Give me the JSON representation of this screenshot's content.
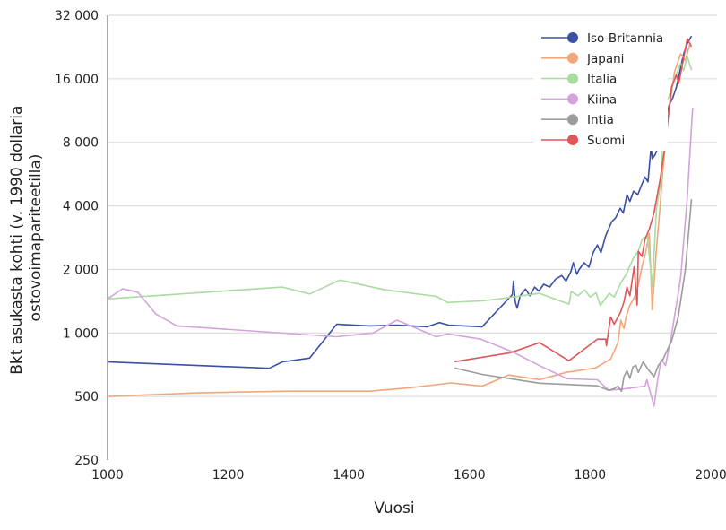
{
  "chart_data": {
    "type": "line",
    "title": "",
    "xlabel": "Vuosi",
    "ylabel_lines": [
      "Bkt asukasta kohti (v. 1990 dollaria",
      "ostovoimapariteetilla)"
    ],
    "xlim": [
      1000,
      2000
    ],
    "ylim": [
      250,
      32000
    ],
    "yscale": "log2",
    "xticks": [
      1000,
      1200,
      1400,
      1600,
      1800,
      2000
    ],
    "xtick_labels": [
      "1000",
      "1200",
      "1400",
      "1600",
      "1800",
      "2000"
    ],
    "yticks": [
      250,
      500,
      1000,
      2000,
      4000,
      8000,
      16000,
      32000
    ],
    "ytick_labels": [
      "250",
      "500",
      "1 000",
      "2 000",
      "4 000",
      "8 000",
      "16 000",
      "32 000"
    ],
    "grid": true,
    "legend_position": "top-right",
    "series": [
      {
        "name": "Iso-Britannia",
        "color": "#3a4fa8",
        "points": [
          [
            1000,
            730
          ],
          [
            1268,
            680
          ],
          [
            1290,
            730
          ],
          [
            1335,
            760
          ],
          [
            1380,
            1100
          ],
          [
            1435,
            1080
          ],
          [
            1480,
            1090
          ],
          [
            1530,
            1070
          ],
          [
            1550,
            1120
          ],
          [
            1565,
            1090
          ],
          [
            1621,
            1070
          ],
          [
            1671,
            1520
          ],
          [
            1673,
            1760
          ],
          [
            1676,
            1400
          ],
          [
            1679,
            1310
          ],
          [
            1684,
            1500
          ],
          [
            1693,
            1615
          ],
          [
            1700,
            1500
          ],
          [
            1708,
            1650
          ],
          [
            1715,
            1580
          ],
          [
            1723,
            1700
          ],
          [
            1733,
            1650
          ],
          [
            1743,
            1800
          ],
          [
            1753,
            1870
          ],
          [
            1760,
            1760
          ],
          [
            1768,
            1950
          ],
          [
            1772,
            2150
          ],
          [
            1778,
            1900
          ],
          [
            1782,
            2000
          ],
          [
            1790,
            2150
          ],
          [
            1798,
            2050
          ],
          [
            1805,
            2400
          ],
          [
            1812,
            2610
          ],
          [
            1818,
            2400
          ],
          [
            1826,
            2900
          ],
          [
            1836,
            3370
          ],
          [
            1842,
            3500
          ],
          [
            1850,
            3900
          ],
          [
            1855,
            3700
          ],
          [
            1861,
            4520
          ],
          [
            1866,
            4200
          ],
          [
            1872,
            4700
          ],
          [
            1879,
            4520
          ],
          [
            1885,
            5000
          ],
          [
            1891,
            5480
          ],
          [
            1896,
            5200
          ],
          [
            1901,
            7660
          ],
          [
            1903,
            6690
          ],
          [
            1908,
            7000
          ],
          [
            1916,
            8120
          ],
          [
            1923,
            9800
          ],
          [
            1931,
            12000
          ],
          [
            1937,
            13000
          ],
          [
            1943,
            14600
          ],
          [
            1949,
            17500
          ],
          [
            1955,
            21000
          ],
          [
            1961,
            23500
          ],
          [
            1968,
            25500
          ]
        ]
      },
      {
        "name": "Japani",
        "color": "#f0a77c",
        "points": [
          [
            1000,
            500
          ],
          [
            1150,
            520
          ],
          [
            1300,
            530
          ],
          [
            1435,
            530
          ],
          [
            1500,
            550
          ],
          [
            1570,
            580
          ],
          [
            1621,
            560
          ],
          [
            1665,
            632
          ],
          [
            1716,
            601
          ],
          [
            1760,
            650
          ],
          [
            1809,
            683
          ],
          [
            1834,
            753
          ],
          [
            1840,
            820
          ],
          [
            1846,
            900
          ],
          [
            1851,
            1150
          ],
          [
            1856,
            1050
          ],
          [
            1860,
            1200
          ],
          [
            1866,
            1355
          ],
          [
            1872,
            1450
          ],
          [
            1878,
            1600
          ],
          [
            1883,
            1870
          ],
          [
            1886,
            2060
          ],
          [
            1892,
            2400
          ],
          [
            1898,
            2960
          ],
          [
            1903,
            1290
          ],
          [
            1910,
            2500
          ],
          [
            1916,
            4000
          ],
          [
            1921,
            6050
          ],
          [
            1930,
            11000
          ],
          [
            1940,
            17300
          ],
          [
            1950,
            21000
          ],
          [
            1958,
            19500
          ],
          [
            1965,
            23200
          ]
        ]
      },
      {
        "name": "Italia",
        "color": "#a8dca0",
        "points": [
          [
            1000,
            1450
          ],
          [
            1290,
            1650
          ],
          [
            1335,
            1530
          ],
          [
            1385,
            1780
          ],
          [
            1460,
            1600
          ],
          [
            1545,
            1490
          ],
          [
            1564,
            1395
          ],
          [
            1621,
            1420
          ],
          [
            1658,
            1460
          ],
          [
            1716,
            1540
          ],
          [
            1765,
            1370
          ],
          [
            1769,
            1570
          ],
          [
            1780,
            1500
          ],
          [
            1791,
            1600
          ],
          [
            1800,
            1480
          ],
          [
            1810,
            1550
          ],
          [
            1817,
            1350
          ],
          [
            1825,
            1450
          ],
          [
            1832,
            1540
          ],
          [
            1840,
            1480
          ],
          [
            1851,
            1730
          ],
          [
            1860,
            1900
          ],
          [
            1872,
            2270
          ],
          [
            1880,
            2440
          ],
          [
            1886,
            2770
          ],
          [
            1895,
            2900
          ],
          [
            1903,
            1650
          ],
          [
            1910,
            3850
          ],
          [
            1918,
            5330
          ],
          [
            1921,
            11700
          ],
          [
            1930,
            13000
          ],
          [
            1940,
            16000
          ],
          [
            1950,
            19000
          ],
          [
            1955,
            17500
          ],
          [
            1961,
            20400
          ],
          [
            1968,
            17600
          ]
        ]
      },
      {
        "name": "Kiina",
        "color": "#d4a2dc",
        "points": [
          [
            1000,
            1450
          ],
          [
            1025,
            1620
          ],
          [
            1050,
            1560
          ],
          [
            1080,
            1230
          ],
          [
            1115,
            1080
          ],
          [
            1380,
            960
          ],
          [
            1440,
            1000
          ],
          [
            1480,
            1150
          ],
          [
            1545,
            960
          ],
          [
            1564,
            990
          ],
          [
            1619,
            935
          ],
          [
            1671,
            815
          ],
          [
            1716,
            700
          ],
          [
            1762,
            607
          ],
          [
            1812,
            600
          ],
          [
            1831,
            535
          ],
          [
            1860,
            545
          ],
          [
            1891,
            560
          ],
          [
            1894,
            600
          ],
          [
            1906,
            450
          ],
          [
            1912,
            600
          ],
          [
            1918,
            750
          ],
          [
            1925,
            700
          ],
          [
            1935,
            980
          ],
          [
            1950,
            1820
          ],
          [
            1961,
            4380
          ],
          [
            1970,
            11700
          ]
        ]
      },
      {
        "name": "Intia",
        "color": "#9c9c9c",
        "points": [
          [
            1575,
            683
          ],
          [
            1621,
            636
          ],
          [
            1716,
            578
          ],
          [
            1812,
            562
          ],
          [
            1831,
            535
          ],
          [
            1840,
            545
          ],
          [
            1846,
            560
          ],
          [
            1852,
            530
          ],
          [
            1856,
            620
          ],
          [
            1861,
            663
          ],
          [
            1866,
            610
          ],
          [
            1871,
            690
          ],
          [
            1876,
            703
          ],
          [
            1880,
            650
          ],
          [
            1888,
            730
          ],
          [
            1895,
            680
          ],
          [
            1906,
            620
          ],
          [
            1913,
            700
          ],
          [
            1921,
            750
          ],
          [
            1928,
            830
          ],
          [
            1935,
            915
          ],
          [
            1946,
            1190
          ],
          [
            1958,
            2000
          ],
          [
            1968,
            4300
          ]
        ]
      },
      {
        "name": "Suomi",
        "color": "#e0555a",
        "points": [
          [
            1575,
            731
          ],
          [
            1668,
            806
          ],
          [
            1716,
            900
          ],
          [
            1765,
            738
          ],
          [
            1812,
            935
          ],
          [
            1826,
            935
          ],
          [
            1827,
            870
          ],
          [
            1834,
            1190
          ],
          [
            1840,
            1100
          ],
          [
            1851,
            1265
          ],
          [
            1856,
            1400
          ],
          [
            1861,
            1650
          ],
          [
            1866,
            1500
          ],
          [
            1873,
            2060
          ],
          [
            1878,
            1355
          ],
          [
            1880,
            2440
          ],
          [
            1886,
            2300
          ],
          [
            1891,
            2770
          ],
          [
            1898,
            3100
          ],
          [
            1906,
            3710
          ],
          [
            1916,
            5330
          ],
          [
            1925,
            8000
          ],
          [
            1935,
            14600
          ],
          [
            1943,
            16700
          ],
          [
            1947,
            15200
          ],
          [
            1955,
            20000
          ],
          [
            1961,
            24800
          ],
          [
            1968,
            22700
          ]
        ]
      }
    ]
  }
}
